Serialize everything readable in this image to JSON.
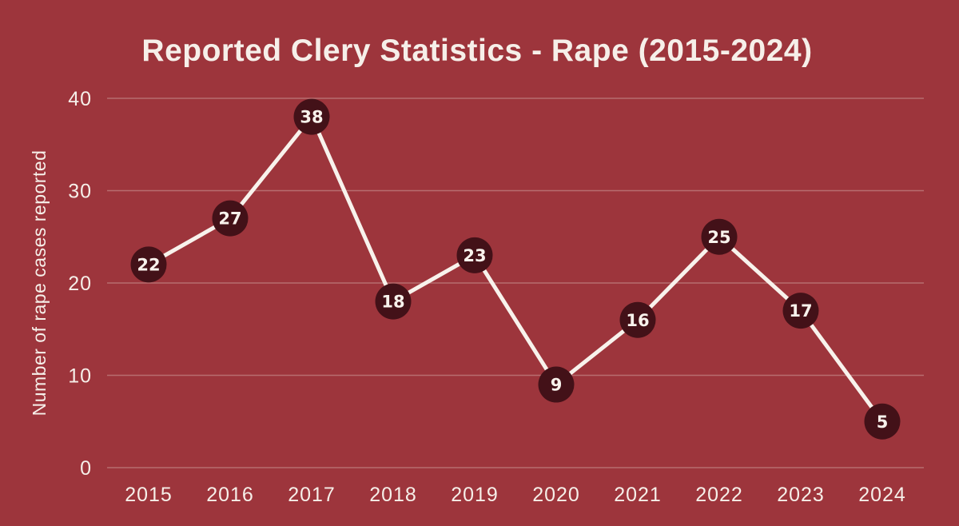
{
  "chart_data": {
    "type": "line",
    "title": "Reported Clery Statistics - Rape (2015-2024)",
    "xlabel": "",
    "ylabel": "Number of rape cases reported",
    "categories": [
      "2015",
      "2016",
      "2017",
      "2018",
      "2019",
      "2020",
      "2021",
      "2022",
      "2023",
      "2024"
    ],
    "values": [
      22,
      27,
      38,
      18,
      23,
      9,
      16,
      25,
      17,
      5
    ],
    "y_ticks": [
      0,
      10,
      20,
      30,
      40
    ],
    "ylim": [
      0,
      40
    ],
    "grid": true,
    "legend": "none",
    "colors": {
      "background": "#9d353c",
      "point_fill": "#431118",
      "line": "#f8f2ec",
      "text": "#f6efe9",
      "gridline": "rgba(246,238,232,0.30)"
    }
  }
}
